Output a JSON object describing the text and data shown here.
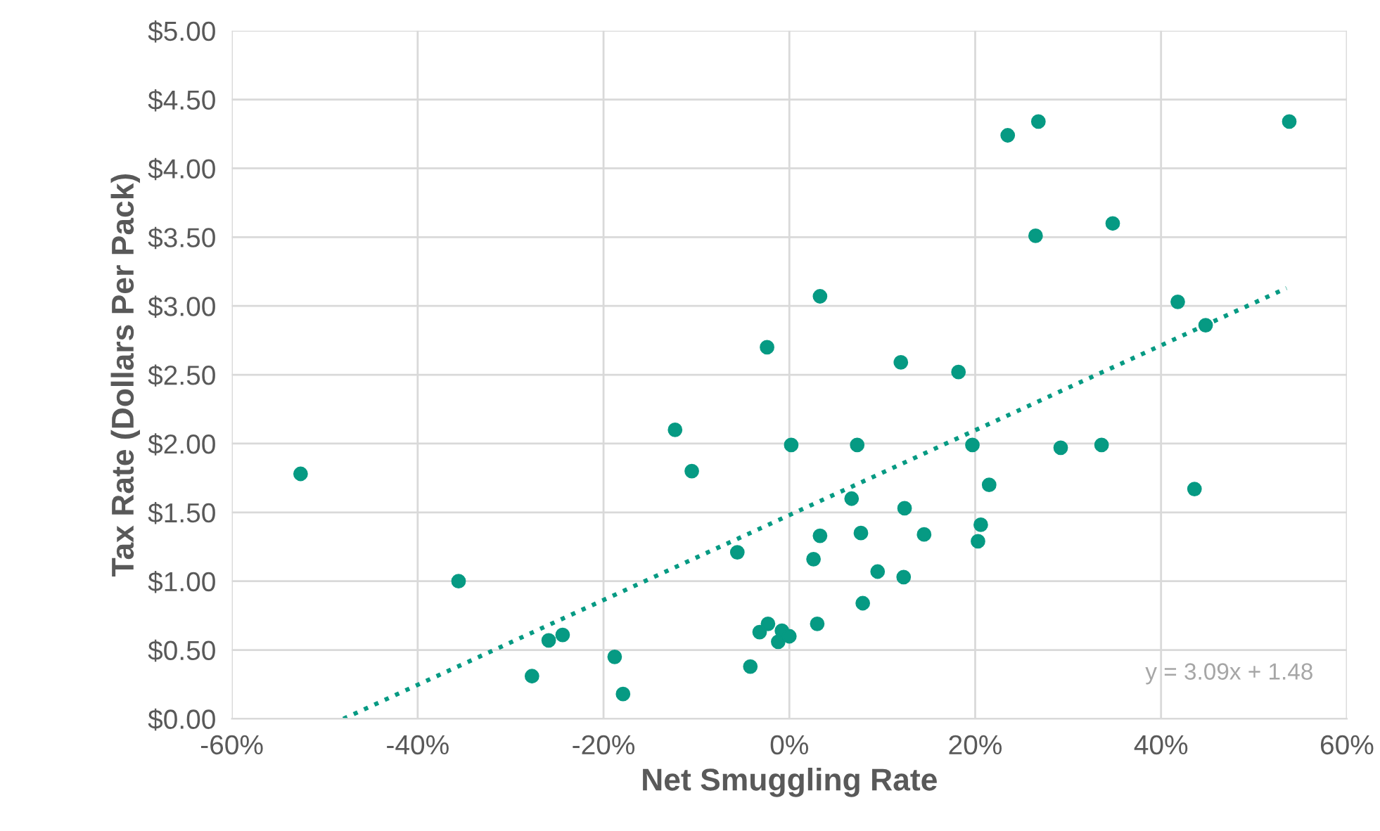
{
  "chart_data": {
    "type": "scatter",
    "xlabel": "Net Smuggling Rate",
    "ylabel": "Tax Rate (Dollars Per Pack)",
    "xlim": [
      -60,
      60
    ],
    "ylim": [
      0,
      5
    ],
    "xticks": [
      {
        "value": -60,
        "label": "-60%"
      },
      {
        "value": -40,
        "label": "-40%"
      },
      {
        "value": -20,
        "label": "-20%"
      },
      {
        "value": 0,
        "label": "0%"
      },
      {
        "value": 20,
        "label": "20%"
      },
      {
        "value": 40,
        "label": "40%"
      },
      {
        "value": 60,
        "label": "60%"
      }
    ],
    "yticks": [
      {
        "value": 0,
        "label": "$0.00"
      },
      {
        "value": 0.5,
        "label": "$0.50"
      },
      {
        "value": 1,
        "label": "$1.00"
      },
      {
        "value": 1.5,
        "label": "$1.50"
      },
      {
        "value": 2,
        "label": "$2.00"
      },
      {
        "value": 2.5,
        "label": "$2.50"
      },
      {
        "value": 3,
        "label": "$3.00"
      },
      {
        "value": 3.5,
        "label": "$3.50"
      },
      {
        "value": 4,
        "label": "$4.00"
      },
      {
        "value": 4.5,
        "label": "$4.50"
      },
      {
        "value": 5,
        "label": "$5.00"
      }
    ],
    "grid": true,
    "legend": false,
    "annotations": [
      "y = 3.09x + 1.48"
    ],
    "series": [
      {
        "color": "#069a83",
        "marker": "circle",
        "x": [
          -52.6,
          -35.6,
          -27.7,
          -25.9,
          -24.4,
          -18.8,
          -17.9,
          -12.3,
          -10.5,
          -5.6,
          -4.2,
          -2.4,
          -3.2,
          -2.3,
          -0.8,
          -1.2,
          0,
          3.0,
          0.2,
          3.3,
          7.3,
          12.0,
          18.2,
          19.7,
          21.5,
          6.7,
          12.4,
          3.3,
          7.7,
          14.5,
          20.6,
          20.3,
          2.6,
          9.5,
          12.3,
          7.9,
          23.5,
          26.8,
          53.8,
          26.5,
          34.8,
          41.8,
          44.8,
          29.2,
          33.6,
          43.6
        ],
        "values": [
          1.78,
          1.0,
          0.31,
          0.57,
          0.61,
          0.45,
          0.18,
          2.1,
          1.8,
          1.21,
          0.38,
          2.7,
          0.63,
          0.69,
          0.64,
          0.56,
          0.6,
          0.69,
          1.99,
          3.07,
          1.99,
          2.59,
          2.52,
          1.99,
          1.7,
          1.6,
          1.53,
          1.33,
          1.35,
          1.34,
          1.41,
          1.29,
          1.16,
          1.07,
          1.03,
          0.84,
          4.24,
          4.34,
          4.34,
          3.51,
          3.6,
          3.03,
          2.86,
          1.97,
          1.99,
          1.67
        ]
      },
      {
        "type": "line",
        "color": "#069a83",
        "line_style": "dotted",
        "marker": "none",
        "x": [
          -48,
          53.5
        ],
        "values": [
          0.0,
          3.13
        ]
      }
    ]
  }
}
